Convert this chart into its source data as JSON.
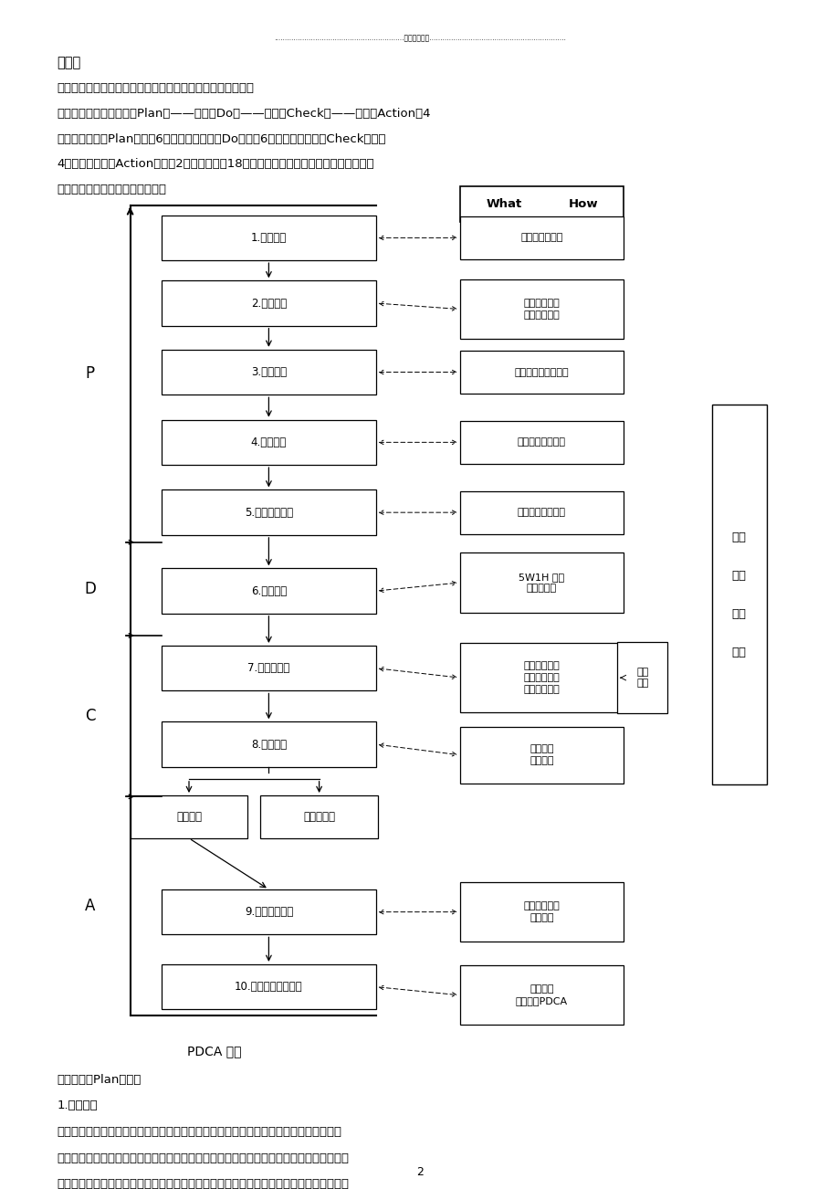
{
  "bg_color": "#ffffff",
  "header_dots": "............................................................精品资料推荐...............................................................",
  "section_title": "案例：",
  "para1": "一、安徽省电力公司淮南供电公司电费质量管理策划案示意图",
  "para2_lines": [
    "　　此策划案分为策划（Plan）——实施（Do）——检查（Check）——处置（Action）4",
    "大步骤，策划（Plan）分为6个小步骤，实施（Do）分为6个小步骤，检查（Check）分为",
    "4个方面，处置（Action）分为2个小步骤，这18的步骤的策划和实施，又由整理、判断、",
    "创新三个策划思维步骤来完成的。"
  ],
  "flow_labels": [
    "1.选择课题",
    "2.现状调查",
    "3.设定目标",
    "4.分析原因",
    "5.确定主要原因",
    "6.制订对策",
    "7.按对策实施",
    "8.检查效果",
    "9.制定巩固措施",
    "10.总结和下一步打算"
  ],
  "right_labels": [
    "找切入点和对象",
    "收集生态信息\n写出调查报告",
    "必要性和可行性分析",
    "鱼刺图法切片分析",
    "因果图法调查分析",
    "5W1H 原则\n头脑风暴法",
    "取得上级支持\n商谈实施细则\n共同执行细则",
    "信息收集\n对比前后",
    "有效措施写入\n管理文件",
    "汇总信息\n策划新的PDCA"
  ],
  "target_labels": [
    "目标达到",
    "目标未达到"
  ],
  "pm_label": "项目\n管理",
  "far_right_label": "决策\n\n计划\n\n实施\n\n验收",
  "pdca_bottom": "PDCA 循环",
  "bottom_section": "二、策划（Plan）阶段",
  "bottom_sub": "1.选择课题",
  "bottom_para_lines": [
    "　　策划者当时负责淮南市东地区所有用户每月电费的计算、审核和收费等销售关键环节",
    "的管理工作。计算、审核和收费都是关系到电费回收率的关键因素。所以决策环肂定是由这",
    "三方面构成的。但决策点是什么呢？策划者和几个组员整理了获得的信息，发现主要是以下"
  ],
  "page_num": "2"
}
